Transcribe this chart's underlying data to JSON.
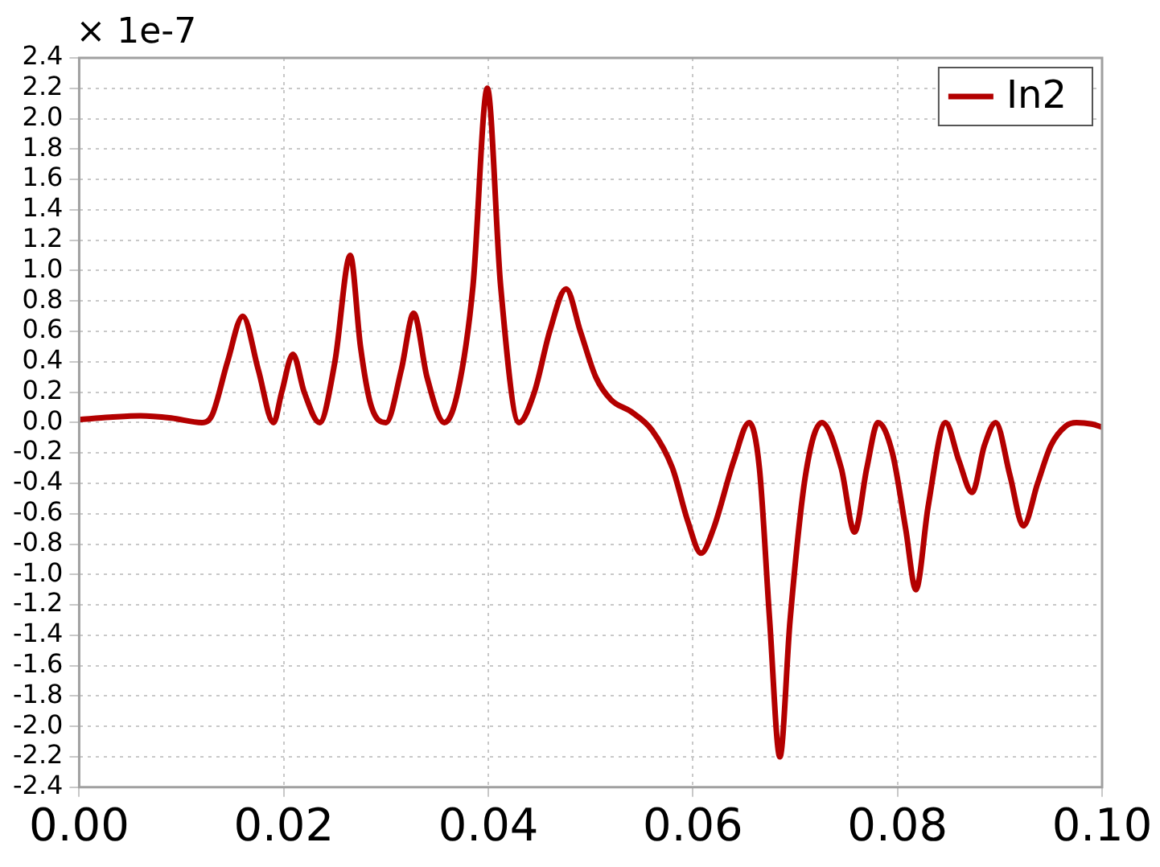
{
  "chart_data": {
    "type": "line",
    "ylabel": "× 1e-7",
    "xlim": [
      0,
      0.1
    ],
    "ylim": [
      -2.4,
      2.4
    ],
    "xticks": [
      {
        "value": 0,
        "label": "0.00"
      },
      {
        "value": 0.02,
        "label": "0.02"
      },
      {
        "value": 0.04,
        "label": "0.04"
      },
      {
        "value": 0.06,
        "label": "0.06"
      },
      {
        "value": 0.08,
        "label": "0.08"
      },
      {
        "value": 0.1,
        "label": "0.10"
      }
    ],
    "yticks": [
      {
        "value": -2.4,
        "label": "-2.4"
      },
      {
        "value": -2.2,
        "label": "-2.2"
      },
      {
        "value": -2,
        "label": "-2.0"
      },
      {
        "value": -1.8,
        "label": "-1.8"
      },
      {
        "value": -1.6,
        "label": "-1.6"
      },
      {
        "value": -1.4,
        "label": "-1.4"
      },
      {
        "value": -1.2,
        "label": "-1.2"
      },
      {
        "value": -1,
        "label": "-1.0"
      },
      {
        "value": -0.8,
        "label": "-0.8"
      },
      {
        "value": -0.6,
        "label": "-0.6"
      },
      {
        "value": -0.4,
        "label": "-0.4"
      },
      {
        "value": -0.2,
        "label": "-0.2"
      },
      {
        "value": 0,
        "label": "0.0"
      },
      {
        "value": 0.2,
        "label": "0.2"
      },
      {
        "value": 0.4,
        "label": "0.4"
      },
      {
        "value": 0.6,
        "label": "0.6"
      },
      {
        "value": 0.8,
        "label": "0.8"
      },
      {
        "value": 1,
        "label": "1.0"
      },
      {
        "value": 1.2,
        "label": "1.2"
      },
      {
        "value": 1.4,
        "label": "1.4"
      },
      {
        "value": 1.6,
        "label": "1.6"
      },
      {
        "value": 1.8,
        "label": "1.8"
      },
      {
        "value": 2,
        "label": "2.0"
      },
      {
        "value": 2.2,
        "label": "2.2"
      },
      {
        "value": 2.4,
        "label": "2.4"
      }
    ],
    "grid": true,
    "legend": "top right",
    "marker": "none",
    "line_style": "solid",
    "series": [
      {
        "name": "In2",
        "color": "#b30000",
        "x": [
          0,
          0.003,
          0.006,
          0.009,
          0.012,
          0.013,
          0.0145,
          0.016,
          0.0175,
          0.019,
          0.0198,
          0.0209,
          0.022,
          0.0235,
          0.025,
          0.0265,
          0.0275,
          0.0285,
          0.03,
          0.0315,
          0.0327,
          0.034,
          0.0357,
          0.037,
          0.0385,
          0.0399,
          0.0412,
          0.043,
          0.0445,
          0.046,
          0.0476,
          0.049,
          0.0505,
          0.052,
          0.054,
          0.056,
          0.058,
          0.0595,
          0.0608,
          0.062,
          0.064,
          0.0655,
          0.0665,
          0.0675,
          0.0685,
          0.0695,
          0.071,
          0.0726,
          0.0745,
          0.0758,
          0.077,
          0.0781,
          0.0795,
          0.0808,
          0.0818,
          0.083,
          0.0847,
          0.086,
          0.0873,
          0.0885,
          0.0896,
          0.091,
          0.0923,
          0.0937,
          0.095,
          0.0965,
          0.0975,
          0.099,
          0.1
        ],
        "values": [
          0.02,
          0.035,
          0.045,
          0.03,
          0,
          0.05,
          0.4,
          0.7,
          0.35,
          0,
          0.2,
          0.45,
          0.2,
          0,
          0.4,
          1.1,
          0.5,
          0.12,
          0,
          0.35,
          0.72,
          0.3,
          0,
          0.2,
          0.9,
          2.2,
          0.9,
          0,
          0.2,
          0.6,
          0.88,
          0.6,
          0.3,
          0.15,
          0.07,
          -0.05,
          -0.3,
          -0.65,
          -0.86,
          -0.7,
          -0.25,
          0,
          -0.3,
          -1.3,
          -2.2,
          -1.3,
          -0.35,
          0,
          -0.3,
          -0.72,
          -0.3,
          0,
          -0.2,
          -0.7,
          -1.1,
          -0.55,
          0,
          -0.25,
          -0.46,
          -0.15,
          0,
          -0.35,
          -0.68,
          -0.4,
          -0.15,
          -0.02,
          0,
          -0.01,
          -0.03
        ]
      }
    ]
  }
}
